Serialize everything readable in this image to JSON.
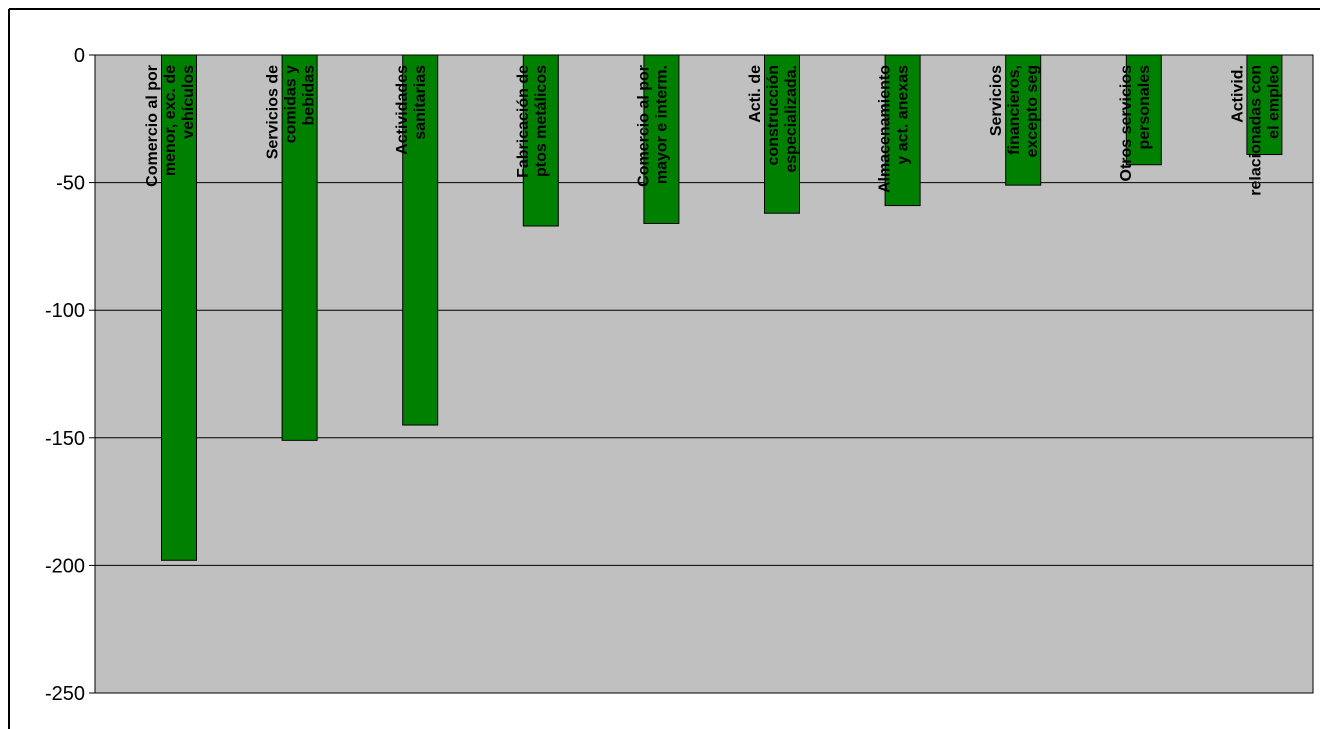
{
  "colors": {
    "plot_background": "#c0c0c0",
    "bar_fill": "#008000",
    "bar_stroke": "#000000",
    "gridline": "#000000",
    "page_border": "#000000"
  },
  "chart_data": {
    "type": "bar",
    "title": "",
    "xlabel": "",
    "ylabel": "",
    "ylim": [
      -250,
      0
    ],
    "yticks": [
      0,
      -50,
      -100,
      -150,
      -200,
      -250
    ],
    "grid": true,
    "legend": "none",
    "categories": [
      [
        "Comercio al por",
        "menor, exc. de",
        "vehículos"
      ],
      [
        "Servicios de",
        "comidas y",
        "bebidas"
      ],
      [
        "Actividades",
        "sanitarias"
      ],
      [
        "Fabricación de",
        "ptos metálicos"
      ],
      [
        "Comercio al por",
        "mayor e interm."
      ],
      [
        "Acti. de",
        "construcción",
        "especializada."
      ],
      [
        "Almacenamiento",
        "y act. anexas"
      ],
      [
        "Servicios",
        "financieros,",
        "excepto seg"
      ],
      [
        "Otros servicios",
        "personales"
      ],
      [
        "Activid.",
        "relacionadas con",
        "el empleo"
      ]
    ],
    "values": [
      -198,
      -151,
      -145,
      -67,
      -66,
      -62,
      -59,
      -51,
      -43,
      -39
    ]
  }
}
